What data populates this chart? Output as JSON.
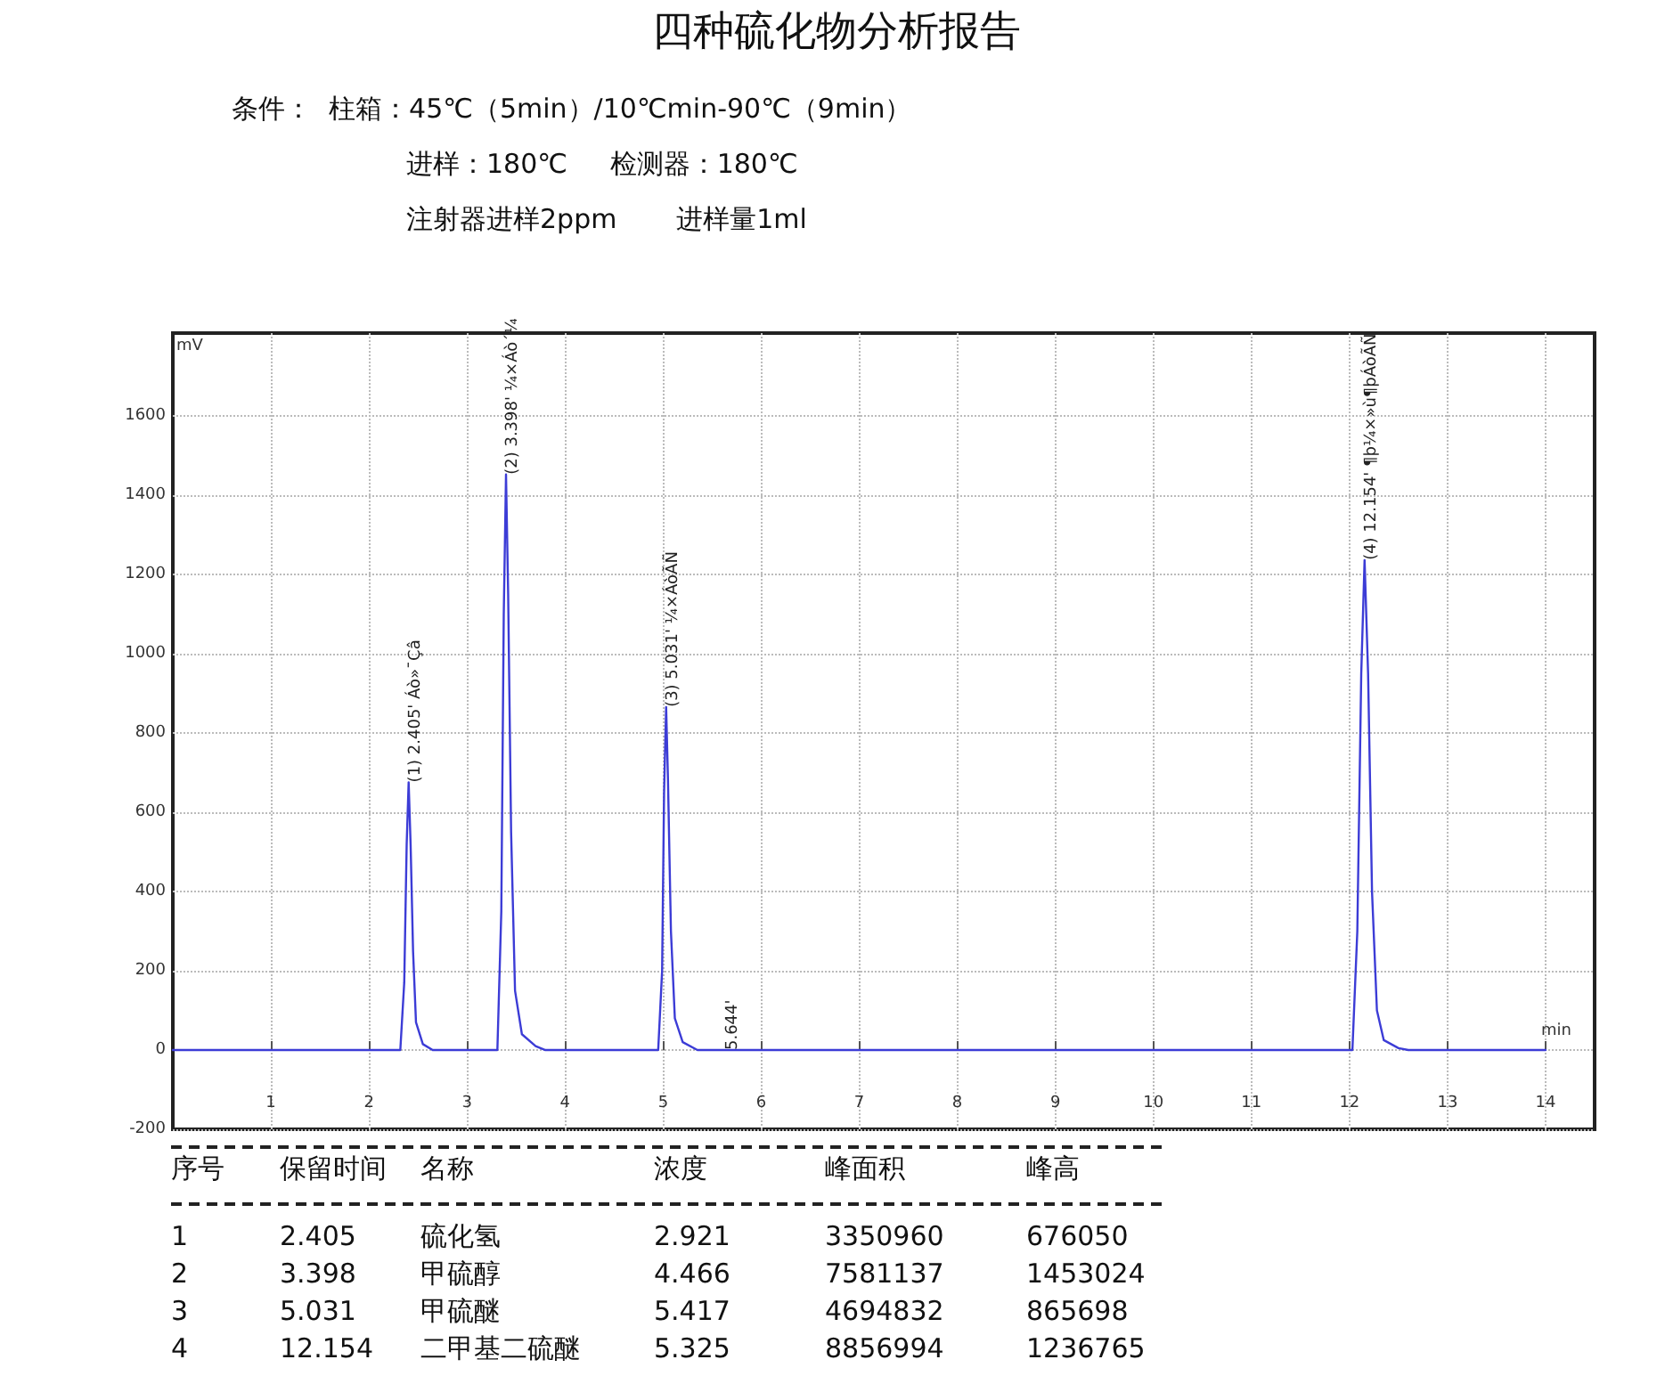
{
  "chart_data": {
    "type": "line",
    "title": "四种硫化物分析报告",
    "xlabel": "min",
    "ylabel": "mV",
    "x": [
      0,
      2.32,
      2.36,
      2.385,
      2.405,
      2.425,
      2.45,
      2.48,
      2.55,
      2.65,
      3.31,
      3.35,
      3.375,
      3.398,
      3.42,
      3.45,
      3.49,
      3.56,
      3.7,
      3.8,
      4.95,
      4.99,
      5.01,
      5.031,
      5.05,
      5.08,
      5.12,
      5.2,
      5.35,
      12.03,
      12.08,
      12.12,
      12.154,
      12.19,
      12.23,
      12.28,
      12.35,
      12.5,
      12.6,
      14
    ],
    "series": [
      {
        "color": "#3c3cd6",
        "values": [
          0,
          0,
          170,
          520,
          676,
          520,
          250,
          70,
          15,
          0,
          0,
          350,
          1100,
          1453,
          1150,
          550,
          150,
          40,
          10,
          0,
          0,
          200,
          650,
          866,
          680,
          300,
          80,
          20,
          0,
          0,
          300,
          950,
          1237,
          950,
          400,
          100,
          25,
          5,
          0,
          0
        ]
      }
    ],
    "xlim": [
      0,
      14.5
    ],
    "xticks": [
      1,
      2,
      3,
      4,
      5,
      6,
      7,
      8,
      9,
      10,
      11,
      12,
      13,
      14
    ],
    "ylim": [
      -200,
      1810
    ],
    "yticks": [
      -200,
      0,
      200,
      400,
      600,
      800,
      1000,
      1200,
      1400,
      1600
    ],
    "grid": true,
    "marker": "none",
    "line_style": "solid",
    "annotations": [
      "条件：  柱箱：45℃（5min）/10℃min-90℃（9min）",
      "进样：180℃     检测器：180℃",
      "注射器进样2ppm       进样量1ml",
      {
        "text": "(1) 2.405' Áò»¯Çâ",
        "x": 2.405,
        "y": 676
      },
      {
        "text": "(2) 3.398' ¼×Áò´¼",
        "x": 3.398,
        "y": 1453
      },
      {
        "text": "(3) 5.031' ¼×ÁòÃÑ",
        "x": 5.031,
        "y": 866
      },
      {
        "text": "5.644'",
        "x": 5.644,
        "y": 0
      },
      {
        "text": "(4) 12.154' ¶þ¼×»ù¶þÁòÃÑ",
        "x": 12.154,
        "y": 1237
      },
      "序号\t保留时间\t名称\t浓度\t峰面积\t峰高",
      "1\t2.405\t硫化氢\t2.921\t3350960\t676050",
      "2\t3.398\t甲硫醇\t4.466\t7581137\t1453024",
      "3\t5.031\t甲硫醚\t5.417\t4694832\t865698",
      "4\t12.154\t二甲基二硫醚\t5.325\t8856994\t1236765"
    ]
  }
}
